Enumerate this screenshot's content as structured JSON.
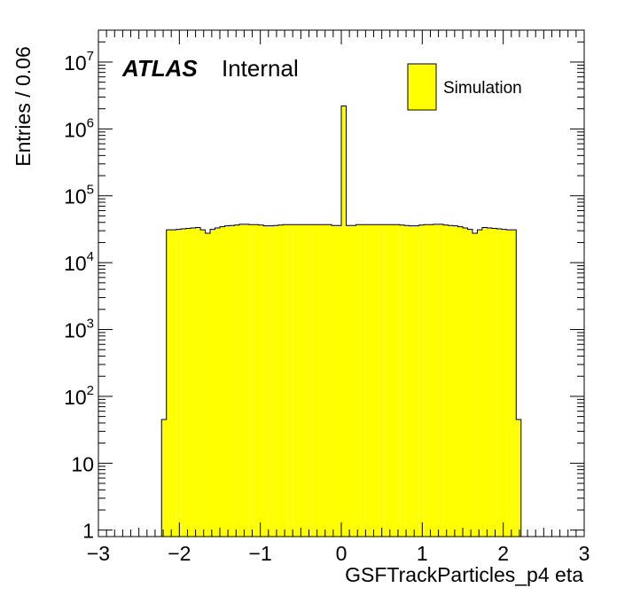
{
  "chart_data": {
    "type": "histogram",
    "title": "",
    "xlabel": "GSFTrackParticles_p4 eta",
    "ylabel": "Entries / 0.06",
    "xlim": [
      -3,
      3
    ],
    "ylim": [
      0.8,
      30000000
    ],
    "y_scale": "log",
    "x_ticks": [
      {
        "v": -3,
        "label": "−3"
      },
      {
        "v": -2,
        "label": "−2"
      },
      {
        "v": -1,
        "label": "−1"
      },
      {
        "v": 0,
        "label": "0"
      },
      {
        "v": 1,
        "label": "1"
      },
      {
        "v": 2,
        "label": "2"
      },
      {
        "v": 3,
        "label": "3"
      }
    ],
    "y_ticks": [
      {
        "v": 1,
        "base": "1",
        "exp": ""
      },
      {
        "v": 10,
        "base": "10",
        "exp": ""
      },
      {
        "v": 100,
        "base": "10",
        "exp": "2"
      },
      {
        "v": 1000,
        "base": "10",
        "exp": "3"
      },
      {
        "v": 10000,
        "base": "10",
        "exp": "4"
      },
      {
        "v": 100000,
        "base": "10",
        "exp": "5"
      },
      {
        "v": 1000000,
        "base": "10",
        "exp": "6"
      },
      {
        "v": 10000000,
        "base": "10",
        "exp": "7"
      }
    ],
    "fill_color": "#ffff00",
    "line_color": "#000000",
    "series": [
      {
        "name": "Simulation",
        "bins": [
          {
            "lo": -2.22,
            "hi": -2.16,
            "value": 45
          },
          {
            "lo": -2.16,
            "hi": -2.1,
            "value": 31000
          },
          {
            "lo": -2.1,
            "hi": -2.04,
            "value": 31000
          },
          {
            "lo": -2.04,
            "hi": -1.98,
            "value": 31500
          },
          {
            "lo": -1.98,
            "hi": -1.92,
            "value": 32000
          },
          {
            "lo": -1.92,
            "hi": -1.86,
            "value": 32500
          },
          {
            "lo": -1.86,
            "hi": -1.8,
            "value": 33000
          },
          {
            "lo": -1.8,
            "hi": -1.74,
            "value": 33500
          },
          {
            "lo": -1.74,
            "hi": -1.68,
            "value": 31000
          },
          {
            "lo": -1.68,
            "hi": -1.62,
            "value": 27500
          },
          {
            "lo": -1.62,
            "hi": -1.56,
            "value": 31500
          },
          {
            "lo": -1.56,
            "hi": -1.5,
            "value": 33000
          },
          {
            "lo": -1.5,
            "hi": -1.44,
            "value": 34500
          },
          {
            "lo": -1.44,
            "hi": -1.38,
            "value": 35500
          },
          {
            "lo": -1.38,
            "hi": -1.32,
            "value": 36000
          },
          {
            "lo": -1.32,
            "hi": -1.26,
            "value": 36500
          },
          {
            "lo": -1.26,
            "hi": -1.2,
            "value": 37500
          },
          {
            "lo": -1.2,
            "hi": -1.14,
            "value": 37500
          },
          {
            "lo": -1.14,
            "hi": -1.08,
            "value": 37000
          },
          {
            "lo": -1.08,
            "hi": -1.02,
            "value": 37000
          },
          {
            "lo": -1.02,
            "hi": -0.96,
            "value": 36500
          },
          {
            "lo": -0.96,
            "hi": -0.9,
            "value": 35500
          },
          {
            "lo": -0.9,
            "hi": -0.84,
            "value": 35500
          },
          {
            "lo": -0.84,
            "hi": -0.78,
            "value": 36000
          },
          {
            "lo": -0.78,
            "hi": -0.72,
            "value": 36500
          },
          {
            "lo": -0.72,
            "hi": -0.66,
            "value": 37000
          },
          {
            "lo": -0.66,
            "hi": -0.6,
            "value": 37000
          },
          {
            "lo": -0.6,
            "hi": -0.54,
            "value": 37000
          },
          {
            "lo": -0.54,
            "hi": -0.48,
            "value": 37000
          },
          {
            "lo": -0.48,
            "hi": -0.42,
            "value": 37000
          },
          {
            "lo": -0.42,
            "hi": -0.36,
            "value": 37000
          },
          {
            "lo": -0.36,
            "hi": -0.3,
            "value": 37000
          },
          {
            "lo": -0.3,
            "hi": -0.24,
            "value": 37000
          },
          {
            "lo": -0.24,
            "hi": -0.18,
            "value": 37000
          },
          {
            "lo": -0.18,
            "hi": -0.12,
            "value": 37000
          },
          {
            "lo": -0.12,
            "hi": -0.06,
            "value": 36000
          },
          {
            "lo": -0.06,
            "hi": 0.0,
            "value": 36000
          },
          {
            "lo": 0.0,
            "hi": 0.06,
            "value": 2200000
          },
          {
            "lo": 0.06,
            "hi": 0.12,
            "value": 36000
          },
          {
            "lo": 0.12,
            "hi": 0.18,
            "value": 36000
          },
          {
            "lo": 0.18,
            "hi": 0.24,
            "value": 37000
          },
          {
            "lo": 0.24,
            "hi": 0.3,
            "value": 37000
          },
          {
            "lo": 0.3,
            "hi": 0.36,
            "value": 37000
          },
          {
            "lo": 0.36,
            "hi": 0.42,
            "value": 37000
          },
          {
            "lo": 0.42,
            "hi": 0.48,
            "value": 37000
          },
          {
            "lo": 0.48,
            "hi": 0.54,
            "value": 37000
          },
          {
            "lo": 0.54,
            "hi": 0.6,
            "value": 37000
          },
          {
            "lo": 0.6,
            "hi": 0.66,
            "value": 37000
          },
          {
            "lo": 0.66,
            "hi": 0.72,
            "value": 37000
          },
          {
            "lo": 0.72,
            "hi": 0.78,
            "value": 36500
          },
          {
            "lo": 0.78,
            "hi": 0.84,
            "value": 36000
          },
          {
            "lo": 0.84,
            "hi": 0.9,
            "value": 35500
          },
          {
            "lo": 0.9,
            "hi": 0.96,
            "value": 35500
          },
          {
            "lo": 0.96,
            "hi": 1.02,
            "value": 36500
          },
          {
            "lo": 1.02,
            "hi": 1.08,
            "value": 37000
          },
          {
            "lo": 1.08,
            "hi": 1.14,
            "value": 37000
          },
          {
            "lo": 1.14,
            "hi": 1.2,
            "value": 37500
          },
          {
            "lo": 1.2,
            "hi": 1.26,
            "value": 37500
          },
          {
            "lo": 1.26,
            "hi": 1.32,
            "value": 36500
          },
          {
            "lo": 1.32,
            "hi": 1.38,
            "value": 36000
          },
          {
            "lo": 1.38,
            "hi": 1.44,
            "value": 35500
          },
          {
            "lo": 1.44,
            "hi": 1.5,
            "value": 34500
          },
          {
            "lo": 1.5,
            "hi": 1.56,
            "value": 33000
          },
          {
            "lo": 1.56,
            "hi": 1.62,
            "value": 31500
          },
          {
            "lo": 1.62,
            "hi": 1.68,
            "value": 27500
          },
          {
            "lo": 1.68,
            "hi": 1.74,
            "value": 31000
          },
          {
            "lo": 1.74,
            "hi": 1.8,
            "value": 33500
          },
          {
            "lo": 1.8,
            "hi": 1.86,
            "value": 33000
          },
          {
            "lo": 1.86,
            "hi": 1.92,
            "value": 32500
          },
          {
            "lo": 1.92,
            "hi": 1.98,
            "value": 32000
          },
          {
            "lo": 1.98,
            "hi": 2.04,
            "value": 31500
          },
          {
            "lo": 2.04,
            "hi": 2.1,
            "value": 31000
          },
          {
            "lo": 2.1,
            "hi": 2.16,
            "value": 31000
          },
          {
            "lo": 2.16,
            "hi": 2.22,
            "value": 45
          }
        ]
      }
    ],
    "legend": {
      "placement": "top-right",
      "entries": [
        "Simulation"
      ]
    },
    "annotations": {
      "experiment": "ATLAS",
      "status": "Internal"
    }
  }
}
